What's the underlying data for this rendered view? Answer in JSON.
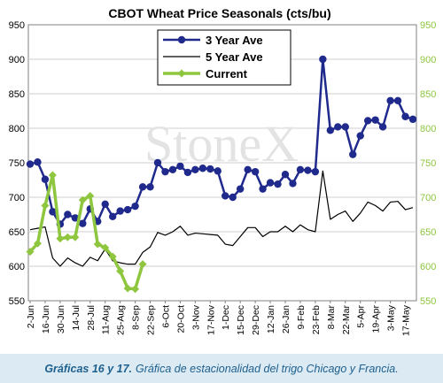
{
  "chart_data": {
    "type": "line",
    "title": "CBOT Wheat Price Seasonals (cts/bu)",
    "watermark": "StoneX",
    "x_tick_labels": [
      "2-Jun",
      "16-Jun",
      "30-Jun",
      "14-Jul",
      "28-Jul",
      "11-Aug",
      "25-Aug",
      "8-Sep",
      "22-Sep",
      "6-Oct",
      "20-Oct",
      "3-Nov",
      "17-Nov",
      "1-Dec",
      "15-Dec",
      "29-Dec",
      "12-Jan",
      "26-Jan",
      "9-Feb",
      "23-Feb",
      "8-Mar",
      "22-Mar",
      "5-Apr",
      "19-Apr",
      "3-May",
      "17-May"
    ],
    "ylim": [
      550,
      950
    ],
    "y_ticks": [
      550,
      600,
      650,
      700,
      750,
      800,
      850,
      900,
      950
    ],
    "y2lim": [
      550,
      950
    ],
    "y2_ticks": [
      550,
      600,
      650,
      700,
      750,
      800,
      850,
      900,
      950
    ],
    "y2_color": "#8ec63f",
    "grid": true,
    "legend_position": "top-center",
    "series": [
      {
        "name": "3 Year Ave",
        "color": "#1f2a8c",
        "marker": "circle",
        "axis": "left",
        "values": [
          748,
          751,
          726,
          679,
          661,
          675,
          670,
          662,
          683,
          665,
          690,
          672,
          680,
          682,
          687,
          715,
          715,
          750,
          737,
          740,
          745,
          736,
          740,
          742,
          741,
          738,
          702,
          700,
          712,
          740,
          737,
          712,
          721,
          719,
          733,
          720,
          740,
          739,
          737,
          900,
          797,
          802,
          802,
          762,
          789,
          811,
          812,
          802,
          840,
          840,
          817,
          813
        ]
      },
      {
        "name": "5 Year Ave",
        "color": "#000000",
        "marker": "none",
        "axis": "left",
        "values": [
          653,
          655,
          657,
          612,
          600,
          612,
          605,
          600,
          613,
          608,
          625,
          608,
          605,
          603,
          603,
          620,
          628,
          649,
          645,
          650,
          658,
          645,
          648,
          647,
          646,
          645,
          632,
          630,
          643,
          656,
          656,
          643,
          650,
          650,
          658,
          650,
          660,
          653,
          650,
          738,
          668,
          675,
          680,
          665,
          677,
          693,
          688,
          680,
          693,
          694,
          682,
          685
        ]
      },
      {
        "name": "Current",
        "color": "#8ec63f",
        "marker": "diamond",
        "axis": "right",
        "values": [
          621,
          633,
          688,
          732,
          640,
          642,
          642,
          696,
          702,
          632,
          627,
          614,
          593,
          568,
          567,
          603,
          null,
          null,
          null,
          null,
          null,
          null,
          null,
          null,
          null,
          null,
          null,
          null,
          null,
          null,
          null,
          null,
          null,
          null,
          null,
          null,
          null,
          null,
          null,
          null,
          null,
          null,
          null,
          null,
          null,
          null,
          null,
          null,
          null,
          null,
          null,
          null
        ]
      }
    ]
  },
  "caption": {
    "label": "Gráficas 16 y 17.",
    "text": "Gráfica de estacionalidad del trigo Chicago y Francia."
  }
}
